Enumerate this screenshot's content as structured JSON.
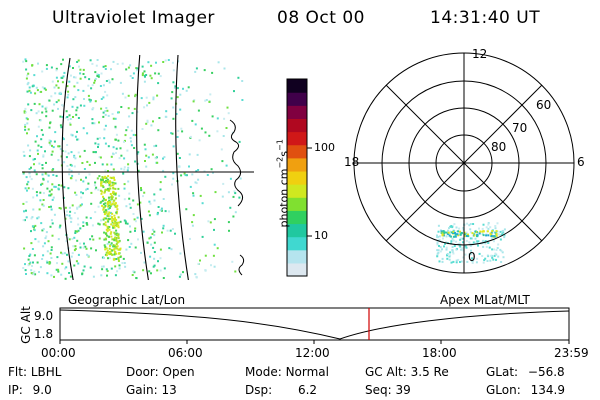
{
  "header": {
    "title": "Ultraviolet Imager",
    "date": "08 Oct 00",
    "time": "14:31:40 UT"
  },
  "colorbar": {
    "label_main": "photon cm",
    "label_exp1": "−2",
    "label_s": "s",
    "label_exp2": "−1",
    "tick_high": "100",
    "tick_low": "10",
    "colors": [
      "#dde8f0",
      "#b5e4ee",
      "#40d8d0",
      "#20c8a0",
      "#30d060",
      "#80e030",
      "#d0e820",
      "#f0d010",
      "#f0a010",
      "#e05010",
      "#d01818",
      "#b00820",
      "#800040",
      "#40004a",
      "#100020"
    ]
  },
  "left_map": {
    "caption": "Geographic Lat/Lon"
  },
  "right_polar": {
    "caption": "Apex MLat/MLT",
    "mlt_labels": {
      "top": "12",
      "left": "18",
      "right": "6",
      "bottom": "0"
    },
    "lat_labels": [
      "60",
      "70",
      "80"
    ]
  },
  "timeline": {
    "ylabel": "GC Alt",
    "y_top": "9.0",
    "y_bottom": "1.8",
    "ticks": [
      "00:00",
      "06:00",
      "12:00",
      "18:00",
      "23:59"
    ],
    "marker_color": "#d00000"
  },
  "info": {
    "flt_label": "Flt:",
    "flt_value": "LBHL",
    "ip_label": "IP:",
    "ip_value": "9.0",
    "door_label": "Door:",
    "door_value": "Open",
    "gain_label": "Gain:",
    "gain_value": "13",
    "mode_label": "Mode:",
    "mode_value": "Normal",
    "dsp_label": "Dsp:",
    "dsp_value": "6.2",
    "gcalt_label": "GC Alt:",
    "gcalt_value": "3.5 Re",
    "seq_label": "Seq:",
    "seq_value": "39",
    "glat_label": "GLat:",
    "glat_value": "−56.8",
    "glon_label": "GLon:",
    "glon_value": "134.9"
  }
}
